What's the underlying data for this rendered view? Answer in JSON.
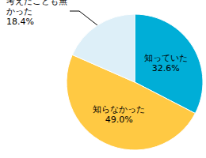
{
  "chart_data": {
    "type": "pie",
    "categories": [
      "知っていた",
      "知らなかった",
      "考えたことも無かった"
    ],
    "values": [
      32.6,
      49.0,
      18.4
    ],
    "value_labels": [
      "32.6%",
      "49.0%",
      "18.4%"
    ],
    "colors": [
      "#00aed7",
      "#ffc943",
      "#ddeff8"
    ],
    "data_labels": true
  }
}
